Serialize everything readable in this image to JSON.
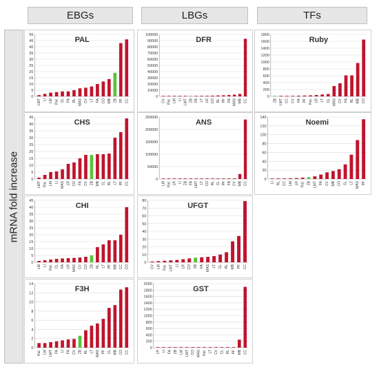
{
  "headers": {
    "ebg": "EBGs",
    "lbg": "LBGs",
    "tf": "TFs"
  },
  "ylabel": "mRNA fold increase",
  "colors": {
    "bar": "#c0142d",
    "highlight": "#5cc23a",
    "axis": "#8c8c8c",
    "grid": "#d9d9d9",
    "text": "#333333"
  },
  "chart_data": [
    {
      "id": "pal",
      "type": "bar",
      "title": "PAL",
      "ylim": [
        0,
        50
      ],
      "yticks": [
        0,
        5,
        10,
        15,
        20,
        25,
        30,
        35,
        40,
        45,
        50
      ],
      "highlight": "ZB",
      "categories": [
        "LMT",
        "LI",
        "LM",
        "Ral.",
        "CL",
        "FA",
        "RL",
        "MAS",
        "CV",
        "LT",
        "FA",
        "CO",
        "MB",
        "ZB",
        "PF",
        "CC"
      ],
      "values": [
        1,
        2,
        3,
        3.5,
        4,
        4,
        5,
        6.5,
        7,
        8,
        10,
        12,
        14,
        19,
        43,
        46
      ]
    },
    {
      "id": "chs",
      "type": "bar",
      "title": "CHS",
      "ylim": [
        0,
        45
      ],
      "yticks": [
        0,
        5,
        10,
        15,
        20,
        25,
        30,
        35,
        40,
        45
      ],
      "highlight": "ZB",
      "categories": [
        "LMT",
        "Ral.",
        "LM",
        "LI",
        "MAS",
        "LR",
        "CO",
        "FA",
        "CV",
        "ZB",
        "MB",
        "CL",
        "RL",
        "LT",
        "PF",
        "CC"
      ],
      "values": [
        1,
        3,
        5,
        5.5,
        7,
        11,
        12,
        15,
        17.5,
        17.5,
        18,
        18,
        18.5,
        30,
        34,
        44
      ]
    },
    {
      "id": "chi",
      "type": "bar",
      "title": "CHI",
      "ylim": [
        0,
        45
      ],
      "yticks": [
        0,
        5,
        10,
        15,
        20,
        25,
        30,
        35,
        40,
        45
      ],
      "highlight": "ZB",
      "categories": [
        "LM",
        "LI",
        "Ral.",
        "CL",
        "FA",
        "LR",
        "MAS",
        "CV",
        "CO",
        "ZB",
        "RL",
        "LT",
        "PF",
        "MB",
        "CC",
        "CO"
      ],
      "values": [
        1,
        1.5,
        2,
        2.5,
        2.8,
        3,
        3.2,
        3.5,
        4,
        5,
        11,
        13,
        16,
        16,
        20,
        40
      ]
    },
    {
      "id": "f3h",
      "type": "bar",
      "title": "F3H",
      "ylim": [
        0,
        14
      ],
      "yticks": [
        0,
        2,
        4,
        6,
        8,
        10,
        12,
        14
      ],
      "highlight": "ZB",
      "categories": [
        "Ral.",
        "LM",
        "LMT",
        "FA",
        "LI",
        "FA",
        "CV",
        "ZB",
        "RL",
        "LT",
        "MAS",
        "PF",
        "CL",
        "MB",
        "CO",
        "CC"
      ],
      "values": [
        1,
        1,
        1.2,
        1.4,
        1.6,
        1.8,
        1.9,
        2.6,
        3.8,
        4.8,
        5.3,
        6.3,
        8.7,
        9.3,
        12.7,
        13.2
      ]
    },
    {
      "id": "dfr",
      "type": "bar",
      "title": "DFR",
      "ylim": [
        0,
        100000
      ],
      "yticks": [
        0,
        10000,
        20000,
        30000,
        40000,
        50000,
        60000,
        70000,
        80000,
        90000,
        100000
      ],
      "highlight": "ZB",
      "categories": [
        "CV",
        "Ral.",
        "LM",
        "LI",
        "LMT",
        "ZB",
        "FA",
        "LT",
        "LR",
        "CO",
        "RL",
        "PF",
        "FA",
        "MAS",
        "MB",
        "CC"
      ],
      "values": [
        200,
        300,
        400,
        500,
        600,
        700,
        800,
        900,
        1000,
        1200,
        1500,
        1800,
        2200,
        2800,
        4000,
        93000
      ]
    },
    {
      "id": "ans",
      "type": "bar",
      "title": "ANS",
      "ylim": [
        0,
        250000
      ],
      "yticks": [
        0,
        50000,
        100000,
        150000,
        200000,
        250000
      ],
      "highlight": "",
      "categories": [
        "LM",
        "Ral.",
        "LR",
        "LI",
        "ZB",
        "FA",
        "LMT",
        "LT",
        "CO",
        "RL",
        "CL",
        "PF",
        "FA",
        "CV",
        "MB",
        "CC"
      ],
      "values": [
        300,
        400,
        500,
        600,
        700,
        800,
        900,
        1000,
        1100,
        1300,
        1500,
        1700,
        2000,
        2500,
        20000,
        240000
      ]
    },
    {
      "id": "ufgt",
      "type": "bar",
      "title": "UFGT",
      "ylim": [
        0,
        80
      ],
      "yticks": [
        0,
        10,
        20,
        30,
        40,
        50,
        60,
        70,
        80
      ],
      "highlight": "ZB",
      "categories": [
        "CV",
        "LM",
        "Ral.",
        "LMT",
        "LI",
        "LR",
        "CO",
        "ZB",
        "FA",
        "MAS",
        "LT",
        "CL",
        "RL",
        "MB",
        "PF",
        "CC"
      ],
      "values": [
        1,
        1.5,
        2,
        2.5,
        3,
        4,
        5,
        6,
        6.5,
        7,
        8,
        10,
        13,
        27,
        34,
        79
      ]
    },
    {
      "id": "gst",
      "type": "bar",
      "title": "GST",
      "ylim": [
        0,
        2000
      ],
      "yticks": [
        0,
        200,
        400,
        600,
        800,
        1000,
        1200,
        1400,
        1600,
        1800,
        2000
      ],
      "highlight": "",
      "categories": [
        "LR",
        "LI",
        "FA",
        "ZB",
        "LM",
        "LMT",
        "CO",
        "MAS",
        "Ral.",
        "LT",
        "CV",
        "CL",
        "RL",
        "PF",
        "MB",
        "CC"
      ],
      "values": [
        2,
        3,
        3,
        4,
        4,
        5,
        5,
        6,
        6,
        7,
        8,
        9,
        10,
        12,
        250,
        1900
      ]
    },
    {
      "id": "ruby",
      "type": "bar",
      "title": "Ruby",
      "ylim": [
        0,
        1800
      ],
      "yticks": [
        0,
        200,
        400,
        600,
        800,
        1000,
        1200,
        1400,
        1600,
        1800
      ],
      "highlight": "ZB",
      "categories": [
        "ZB",
        "LMT",
        "CC",
        "CV",
        "FA",
        "PF",
        "Ral.",
        "LR",
        "LT",
        "CL",
        "MAS",
        "CV",
        "FA",
        "RL",
        "MB",
        "CO"
      ],
      "values": [
        5,
        10,
        12,
        15,
        20,
        25,
        30,
        40,
        55,
        70,
        300,
        380,
        610,
        610,
        970,
        1650
      ]
    },
    {
      "id": "noemi",
      "type": "bar",
      "title": "Noemi",
      "ylim": [
        0,
        140
      ],
      "yticks": [
        0,
        20,
        40,
        60,
        80,
        100,
        120,
        140
      ],
      "highlight": "ZB",
      "categories": [
        "LI",
        "RL",
        "CC",
        "LM",
        "LR",
        "Ral.",
        "ZB",
        "LMT",
        "FA",
        "CV",
        "MB",
        "CO",
        "CL",
        "LT",
        "MAS",
        "PF"
      ],
      "values": [
        0.5,
        0.8,
        1,
        1.5,
        2,
        3,
        4,
        6,
        10,
        15,
        18,
        22,
        33,
        55,
        88,
        135
      ]
    }
  ]
}
